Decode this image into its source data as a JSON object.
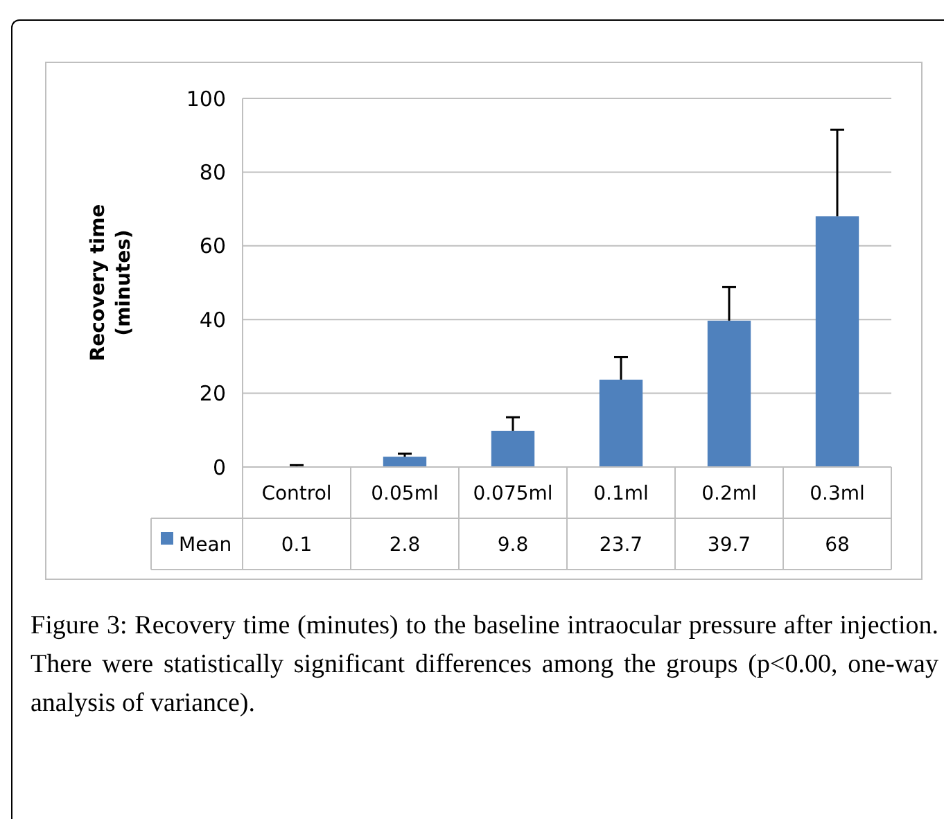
{
  "chart_data": {
    "type": "bar",
    "ylabel": "Recovery time (minutes)",
    "categories": [
      "Control",
      "0.05ml",
      "0.075ml",
      "0.1ml",
      "0.2ml",
      "0.3ml"
    ],
    "series": [
      {
        "name": "Mean",
        "color": "#4f81bd",
        "values": [
          0.1,
          2.8,
          9.8,
          23.7,
          39.7,
          68
        ],
        "errors": [
          [
            0.1,
            0.5
          ],
          [
            2.8,
            3.6
          ],
          [
            9.8,
            13.5
          ],
          [
            23.7,
            29.8
          ],
          [
            39.7,
            48.8
          ],
          [
            68,
            91.5
          ]
        ]
      }
    ],
    "ylim": [
      0,
      100
    ],
    "yticks": [
      0,
      20,
      40,
      60,
      80,
      100
    ],
    "grid": "y",
    "data_labels": true,
    "legend": "bottom",
    "annotations": [
      "Figure 3: Recovery time (minutes) to the baseline intraocular pressure after injection. There were statistically significant differences among the groups (p<0.00, one-way analysis of variance)."
    ]
  }
}
